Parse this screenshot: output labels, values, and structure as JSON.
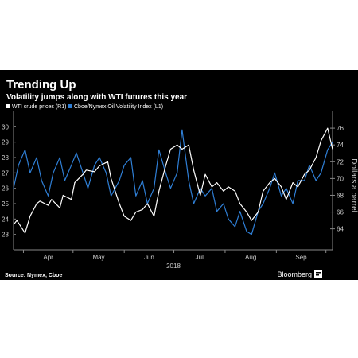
{
  "chart_data": {
    "type": "line",
    "title": "Trending Up",
    "subtitle": "Volatility jumps along with WTI futures this year",
    "xlabel": "2018",
    "y_left": {
      "ylim": [
        22,
        31
      ],
      "ticks": [
        23,
        24,
        25,
        26,
        27,
        28,
        29,
        30
      ]
    },
    "y_right": {
      "label": "Dollars a barrel",
      "ylim": [
        61.5,
        78
      ],
      "ticks": [
        64,
        66,
        68,
        70,
        72,
        74,
        76
      ]
    },
    "x_ticks": [
      "Apr",
      "May",
      "Jun",
      "Jul",
      "Aug",
      "Sep"
    ],
    "x_range": [
      "2018-03-26",
      "2018-10-05"
    ],
    "legend_position": "top-left",
    "grid": false,
    "series": [
      {
        "name": "WTI crude prices (R1)",
        "axis": "right",
        "color": "#ffffff",
        "x": [
          "2018-03-26",
          "2018-03-28",
          "2018-04-02",
          "2018-04-05",
          "2018-04-09",
          "2018-04-11",
          "2018-04-16",
          "2018-04-18",
          "2018-04-23",
          "2018-04-25",
          "2018-04-30",
          "2018-05-02",
          "2018-05-07",
          "2018-05-09",
          "2018-05-14",
          "2018-05-17",
          "2018-05-22",
          "2018-05-24",
          "2018-05-29",
          "2018-06-01",
          "2018-06-05",
          "2018-06-08",
          "2018-06-12",
          "2018-06-15",
          "2018-06-19",
          "2018-06-22",
          "2018-06-26",
          "2018-06-29",
          "2018-07-03",
          "2018-07-06",
          "2018-07-10",
          "2018-07-13",
          "2018-07-17",
          "2018-07-20",
          "2018-07-24",
          "2018-07-27",
          "2018-07-31",
          "2018-08-03",
          "2018-08-07",
          "2018-08-10",
          "2018-08-14",
          "2018-08-17",
          "2018-08-21",
          "2018-08-24",
          "2018-08-28",
          "2018-08-31",
          "2018-09-04",
          "2018-09-07",
          "2018-09-11",
          "2018-09-14",
          "2018-09-18",
          "2018-09-21",
          "2018-09-25",
          "2018-09-28",
          "2018-10-02",
          "2018-10-05"
        ],
        "values": [
          64.5,
          65.0,
          63.5,
          65.5,
          67.0,
          67.3,
          66.8,
          67.5,
          66.5,
          68.0,
          67.5,
          69.5,
          70.5,
          71.0,
          70.8,
          71.5,
          72.0,
          70.0,
          67.0,
          65.5,
          65.0,
          66.0,
          66.3,
          67.0,
          65.5,
          68.5,
          71.5,
          73.5,
          74.0,
          73.5,
          74.0,
          71.0,
          68.0,
          70.5,
          69.0,
          69.5,
          68.5,
          69.0,
          68.5,
          67.0,
          66.0,
          65.0,
          66.0,
          68.5,
          69.5,
          70.0,
          69.0,
          67.5,
          69.5,
          69.0,
          70.5,
          71.0,
          72.5,
          74.5,
          76.0,
          73.5
        ]
      },
      {
        "name": "Cboe/Nymex Oil Volatility Index (L1)",
        "axis": "left",
        "color": "#2f7fd6",
        "x": [
          "2018-03-26",
          "2018-03-29",
          "2018-04-02",
          "2018-04-05",
          "2018-04-09",
          "2018-04-12",
          "2018-04-16",
          "2018-04-19",
          "2018-04-23",
          "2018-04-26",
          "2018-04-30",
          "2018-05-03",
          "2018-05-07",
          "2018-05-10",
          "2018-05-14",
          "2018-05-17",
          "2018-05-21",
          "2018-05-24",
          "2018-05-29",
          "2018-06-01",
          "2018-06-05",
          "2018-06-08",
          "2018-06-12",
          "2018-06-15",
          "2018-06-19",
          "2018-06-22",
          "2018-06-26",
          "2018-06-29",
          "2018-07-03",
          "2018-07-06",
          "2018-07-10",
          "2018-07-13",
          "2018-07-17",
          "2018-07-20",
          "2018-07-24",
          "2018-07-27",
          "2018-07-31",
          "2018-08-03",
          "2018-08-07",
          "2018-08-10",
          "2018-08-14",
          "2018-08-17",
          "2018-08-21",
          "2018-08-24",
          "2018-08-28",
          "2018-08-31",
          "2018-09-04",
          "2018-09-07",
          "2018-09-11",
          "2018-09-14",
          "2018-09-18",
          "2018-09-21",
          "2018-09-25",
          "2018-09-28",
          "2018-10-02",
          "2018-10-05"
        ],
        "values": [
          26.0,
          27.5,
          28.5,
          27.0,
          28.0,
          26.5,
          25.5,
          27.0,
          28.0,
          26.5,
          27.5,
          28.3,
          27.0,
          26.0,
          27.5,
          28.0,
          27.0,
          25.5,
          26.5,
          27.5,
          28.0,
          25.5,
          26.5,
          25.0,
          26.0,
          28.5,
          27.0,
          26.0,
          27.0,
          29.8,
          26.5,
          25.0,
          26.0,
          25.5,
          26.0,
          24.5,
          25.0,
          24.0,
          23.5,
          24.5,
          23.2,
          23.0,
          24.5,
          25.0,
          26.0,
          27.0,
          25.5,
          26.0,
          25.0,
          26.5,
          26.5,
          27.5,
          26.5,
          27.0,
          28.5,
          29.0
        ]
      }
    ],
    "source": "Source: Nymex, Cboe",
    "brand": "Bloomberg"
  }
}
